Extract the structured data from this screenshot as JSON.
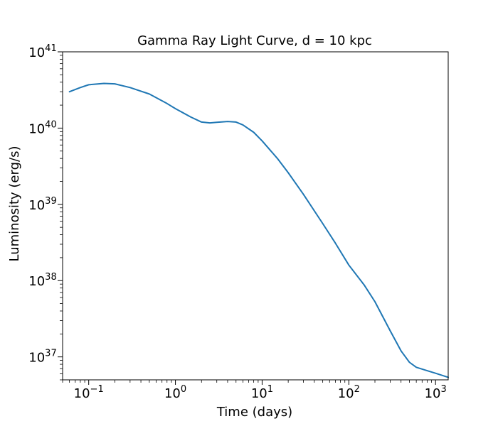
{
  "chart_data": {
    "type": "line",
    "title": "Gamma Ray Light Curve, d = 10 kpc",
    "xlabel": "Time (days)",
    "ylabel": "Luminosity (erg/s)",
    "xscale": "log",
    "yscale": "log",
    "xlim": [
      0.05,
      1400
    ],
    "ylim": [
      5e+36,
      1e+41
    ],
    "grid": false,
    "line_color": "#1f77b4",
    "x_ticks": [
      {
        "value": 0.1,
        "base": "10",
        "exp": "−1"
      },
      {
        "value": 1,
        "base": "10",
        "exp": "0"
      },
      {
        "value": 10,
        "base": "10",
        "exp": "1"
      },
      {
        "value": 100,
        "base": "10",
        "exp": "2"
      },
      {
        "value": 1000,
        "base": "10",
        "exp": "3"
      }
    ],
    "y_ticks": [
      {
        "value": 1e+37,
        "base": "10",
        "exp": "37"
      },
      {
        "value": 1e+38,
        "base": "10",
        "exp": "38"
      },
      {
        "value": 1e+39,
        "base": "10",
        "exp": "39"
      },
      {
        "value": 1e+40,
        "base": "10",
        "exp": "40"
      },
      {
        "value": 1e+41,
        "base": "10",
        "exp": "41"
      }
    ],
    "series": [
      {
        "x": [
          0.06,
          0.08,
          0.1,
          0.15,
          0.2,
          0.3,
          0.5,
          0.8,
          1.0,
          1.5,
          2.0,
          2.5,
          3.0,
          4.0,
          5.0,
          6.0,
          8.0,
          10,
          15,
          20,
          30,
          50,
          70,
          100,
          150,
          200,
          300,
          400,
          500,
          600,
          800,
          1000,
          1400
        ],
        "y": [
          3e+40,
          3.4e+40,
          3.7e+40,
          3.85e+40,
          3.8e+40,
          3.4e+40,
          2.8e+40,
          2.1e+40,
          1.8e+40,
          1.4e+40,
          1.2e+40,
          1.17e+40,
          1.19e+40,
          1.22e+40,
          1.2e+40,
          1.1e+40,
          8.8e+39,
          6.8e+39,
          4e+39,
          2.6e+39,
          1.35e+39,
          5.6e+38,
          3.1e+38,
          1.6e+38,
          8.8e+37,
          5.3e+37,
          2.2e+37,
          1.2e+37,
          8.5e+36,
          7.3e+36,
          6.6e+36,
          6.1e+36,
          5.4e+36
        ]
      }
    ]
  }
}
